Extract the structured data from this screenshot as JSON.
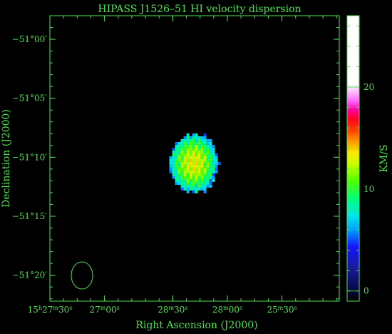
{
  "chart_data": {
    "type": "heatmap",
    "title": "HIPASS J1526–51   HI velocity dispersion",
    "xlabel": "Right Ascension (J2000)",
    "ylabel": "Declination (J2000)",
    "colorbar_label": "KM/S",
    "colorbar_range": [
      -1,
      27
    ],
    "colorbar_ticks": [
      {
        "value": 0,
        "label": "0"
      },
      {
        "value": 10,
        "label": "10"
      },
      {
        "value": 20,
        "label": "20"
      }
    ],
    "x_ticks": [
      {
        "label_html": "15<tspan font-size='8' dy='-4'>h</tspan><tspan dy='4'>27</tspan><tspan font-size='8' dy='-4'>m</tspan><tspan dy='4'>30</tspan><tspan font-size='8' dy='-4'>s</tspan>",
        "label": "15h27m30s",
        "pos": 0.0
      },
      {
        "label_html": "27<tspan font-size='8' dy='-4'>m</tspan><tspan dy='4'>00</tspan><tspan font-size='8' dy='-4'>s</tspan>",
        "label": "27m00s",
        "pos": 0.1887
      },
      {
        "label_html": "28<tspan font-size='8' dy='-4'>m</tspan><tspan dy='4'>30</tspan><tspan font-size='8' dy='-4'>s</tspan>",
        "label": "28m30s",
        "pos": 0.4245
      },
      {
        "label_html": "28<tspan font-size='8' dy='-4'>m</tspan><tspan dy='4'>00</tspan><tspan font-size='8' dy='-4'>s</tspan>",
        "label": "28m00s",
        "pos": 0.6132
      },
      {
        "label_html": "25<tspan font-size='8' dy='-4'>m</tspan><tspan dy='4'>30</tspan><tspan font-size='8' dy='-4'>s</tspan>",
        "label": "25m30s",
        "pos": 0.8019
      }
    ],
    "y_ticks": [
      {
        "label": "−51°00′",
        "arcmin": 0
      },
      {
        "label": "−51°05′",
        "arcmin": 5
      },
      {
        "label": "−51°10′",
        "arcmin": 10
      },
      {
        "label": "−51°15′",
        "arcmin": 15
      },
      {
        "label": "−51°20′",
        "arcmin": 20
      }
    ],
    "dec_range_arcmin": [
      -2,
      22.2
    ],
    "beam_ellipse": true,
    "source": {
      "center_x_frac": 0.4915,
      "center_arcmin": 10.4,
      "peak_kms": 13,
      "edge_kms": 6
    }
  }
}
